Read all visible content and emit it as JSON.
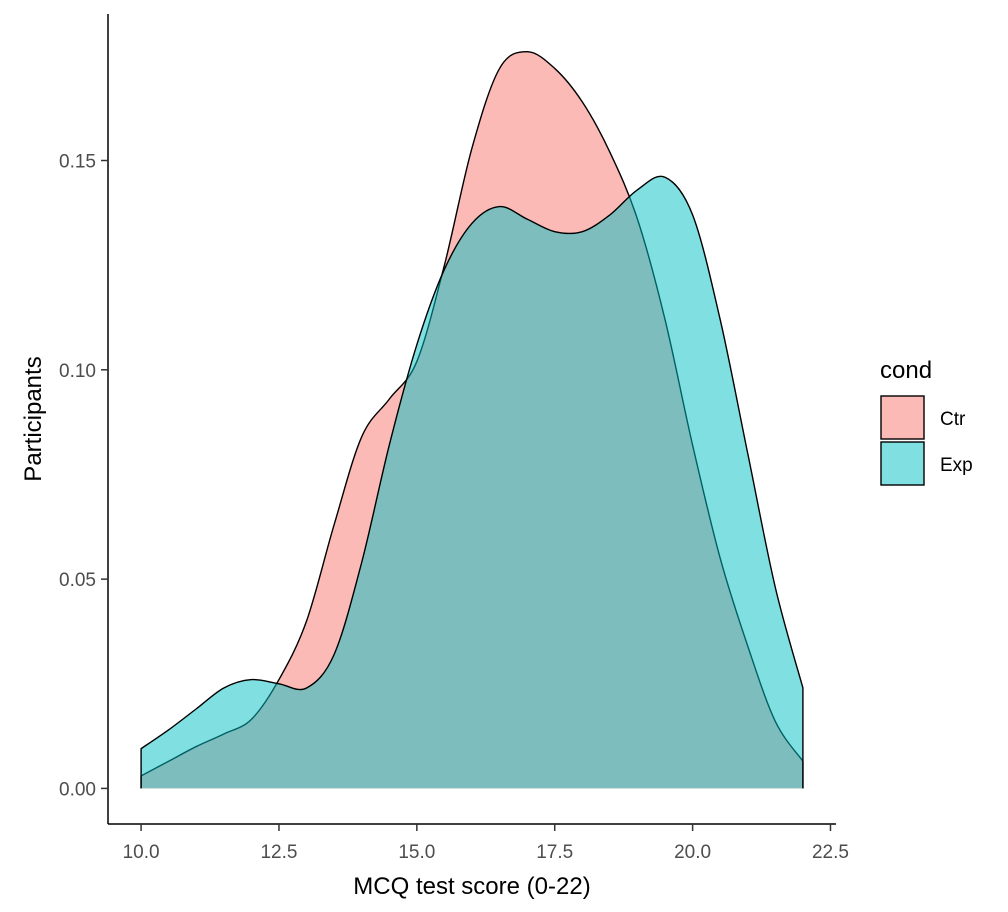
{
  "chart_data": {
    "type": "area",
    "title": "",
    "xlabel": "MCQ test score (0-22)",
    "ylabel": "Participants",
    "xlim": [
      9.4,
      22.6
    ],
    "ylim": [
      -0.0085,
      0.185
    ],
    "x_ticks": [
      10.0,
      12.5,
      15.0,
      17.5,
      20.0,
      22.5
    ],
    "x_tick_labels": [
      "10.0",
      "12.5",
      "15.0",
      "17.5",
      "20.0",
      "22.5"
    ],
    "y_ticks": [
      0.0,
      0.05,
      0.1,
      0.15
    ],
    "y_tick_labels": [
      "0.00",
      "0.05",
      "0.10",
      "0.15"
    ],
    "grid": false,
    "legend": {
      "title": "cond",
      "position": "right"
    },
    "series": [
      {
        "name": "Ctr",
        "color": "#F8766D",
        "points": [
          [
            10.0,
            0.003
          ],
          [
            10.5,
            0.0065
          ],
          [
            11.0,
            0.01
          ],
          [
            11.5,
            0.013
          ],
          [
            12.0,
            0.0165
          ],
          [
            12.5,
            0.026
          ],
          [
            13.0,
            0.04
          ],
          [
            13.5,
            0.063
          ],
          [
            14.0,
            0.084
          ],
          [
            14.5,
            0.093
          ],
          [
            15.0,
            0.102
          ],
          [
            15.5,
            0.125
          ],
          [
            16.0,
            0.153
          ],
          [
            16.5,
            0.172
          ],
          [
            17.0,
            0.176
          ],
          [
            17.5,
            0.172
          ],
          [
            18.0,
            0.164
          ],
          [
            18.5,
            0.152
          ],
          [
            19.0,
            0.136
          ],
          [
            19.5,
            0.112
          ],
          [
            20.0,
            0.082
          ],
          [
            20.5,
            0.055
          ],
          [
            21.0,
            0.034
          ],
          [
            21.5,
            0.016
          ],
          [
            22.0,
            0.0065
          ]
        ]
      },
      {
        "name": "Exp",
        "color": "#00BFC4",
        "points": [
          [
            10.0,
            0.0095
          ],
          [
            10.5,
            0.014
          ],
          [
            11.0,
            0.019
          ],
          [
            11.5,
            0.024
          ],
          [
            12.0,
            0.026
          ],
          [
            12.5,
            0.025
          ],
          [
            13.0,
            0.024
          ],
          [
            13.5,
            0.032
          ],
          [
            14.0,
            0.054
          ],
          [
            14.5,
            0.082
          ],
          [
            15.0,
            0.106
          ],
          [
            15.5,
            0.124
          ],
          [
            16.0,
            0.135
          ],
          [
            16.5,
            0.139
          ],
          [
            17.0,
            0.136
          ],
          [
            17.5,
            0.133
          ],
          [
            18.0,
            0.133
          ],
          [
            18.5,
            0.137
          ],
          [
            19.0,
            0.143
          ],
          [
            19.5,
            0.146
          ],
          [
            20.0,
            0.137
          ],
          [
            20.5,
            0.112
          ],
          [
            21.0,
            0.08
          ],
          [
            21.5,
            0.048
          ],
          [
            22.0,
            0.024
          ]
        ]
      }
    ]
  }
}
